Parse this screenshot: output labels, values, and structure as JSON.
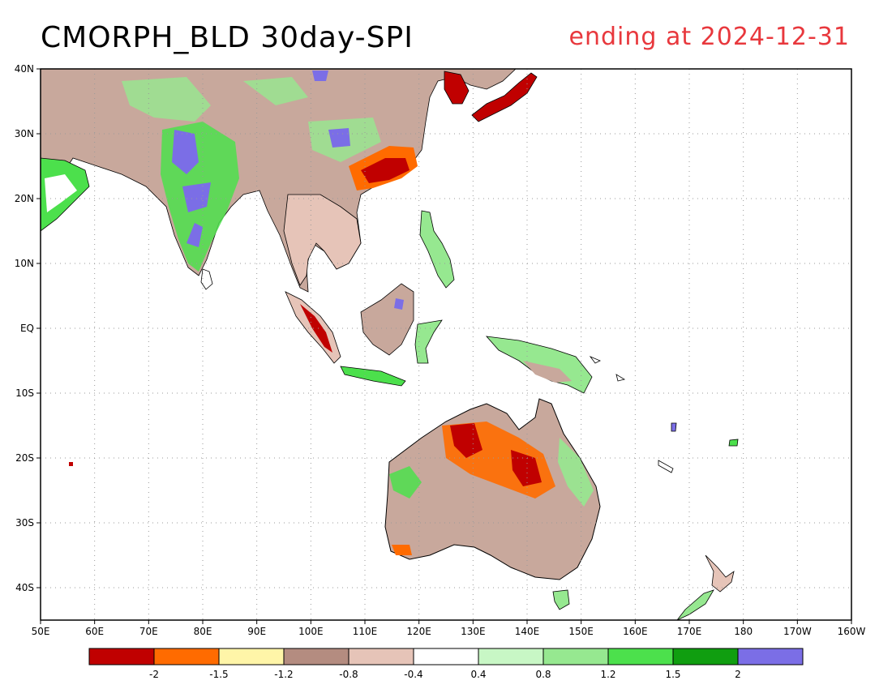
{
  "header": {
    "title": "CMORPH_BLD 30day-SPI",
    "subtitle": "ending at 2024-12-31"
  },
  "map": {
    "lon_range": [
      50,
      200
    ],
    "lat_range": [
      -45,
      40
    ],
    "lon_ticks": [
      "50E",
      "60E",
      "70E",
      "80E",
      "90E",
      "100E",
      "110E",
      "120E",
      "130E",
      "140E",
      "150E",
      "160E",
      "170E",
      "180",
      "170W",
      "160W"
    ],
    "lat_ticks": [
      "40N",
      "30N",
      "20N",
      "10N",
      "EQ",
      "10S",
      "20S",
      "30S",
      "40S"
    ],
    "lat_tick_values": [
      40,
      30,
      20,
      10,
      0,
      -10,
      -20,
      -30,
      -40
    ],
    "lon_tick_values": [
      50,
      60,
      70,
      80,
      90,
      100,
      110,
      120,
      130,
      140,
      150,
      160,
      170,
      180,
      190,
      200
    ],
    "grid": true
  },
  "colorbar": {
    "colors": [
      "#c00000",
      "#ff6b00",
      "#fff5a8",
      "#b48c80",
      "#e6c4b8",
      "#ffffff",
      "#c8f7c5",
      "#96e890",
      "#4ce04c",
      "#109e10",
      "#7b6ee6"
    ],
    "labels": [
      "-2",
      "-1.5",
      "-1.2",
      "-0.8",
      "-0.4",
      "0.4",
      "0.8",
      "1.2",
      "1.5",
      "2"
    ]
  }
}
